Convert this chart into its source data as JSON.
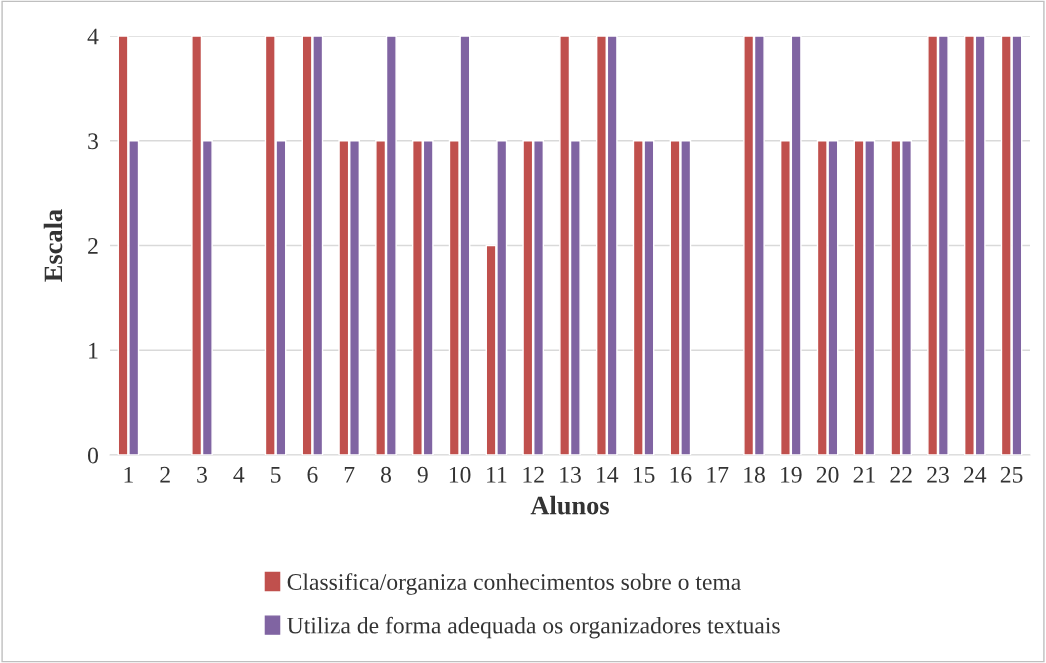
{
  "chart_data": {
    "type": "bar",
    "xlabel": "Alunos",
    "ylabel": "Escala",
    "categories": [
      "1",
      "2",
      "3",
      "4",
      "5",
      "6",
      "7",
      "8",
      "9",
      "10",
      "11",
      "12",
      "13",
      "14",
      "15",
      "16",
      "17",
      "18",
      "19",
      "20",
      "21",
      "22",
      "23",
      "24",
      "25"
    ],
    "series": [
      {
        "name": "Classifica/organiza conhecimentos sobre o tema",
        "color": "#c0504d",
        "values": [
          4,
          null,
          4,
          null,
          4,
          4,
          3,
          3,
          3,
          3,
          2,
          3,
          4,
          4,
          3,
          3,
          null,
          4,
          3,
          3,
          3,
          3,
          4,
          4,
          4
        ]
      },
      {
        "name": "Utiliza de forma adequada os organizadores textuais",
        "color": "#8064a2",
        "values": [
          3,
          null,
          3,
          null,
          3,
          4,
          3,
          4,
          3,
          4,
          3,
          3,
          3,
          4,
          3,
          3,
          null,
          4,
          4,
          3,
          3,
          3,
          4,
          4,
          4
        ]
      }
    ],
    "ylim": [
      0,
      4
    ],
    "yticks": [
      0,
      1,
      2,
      3,
      4
    ],
    "grid": "y",
    "legend": "bottom"
  }
}
